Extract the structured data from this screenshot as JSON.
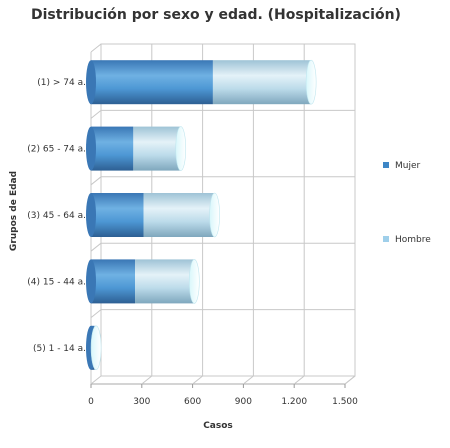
{
  "chart_data": {
    "type": "bar",
    "orientation": "horizontal",
    "stacked": true,
    "style": "3d-cylinder",
    "title": "Distribución por sexo y edad. (Hospitalización)",
    "xlabel": "Casos",
    "ylabel": "Grupos de Edad",
    "categories": [
      "(1) > 74 a.",
      "(2) 65 - 74 a.",
      "(3) 45 - 64 a.",
      "(4) 15 - 44 a.",
      "(5) 1 - 14 a."
    ],
    "series": [
      {
        "name": "Mujer",
        "values": [
          720,
          250,
          310,
          260,
          20
        ],
        "color": "#3d86c6"
      },
      {
        "name": "Hombre",
        "values": [
          580,
          280,
          420,
          350,
          10
        ],
        "color": "#9fcfea"
      }
    ],
    "xlim": [
      0,
      1500
    ],
    "xticks": [
      0,
      300,
      600,
      900,
      1200,
      1500
    ],
    "xtick_labels": [
      "0",
      "300",
      "600",
      "900",
      "1.200",
      "1.500"
    ],
    "grid": true,
    "legend_position": "right"
  }
}
